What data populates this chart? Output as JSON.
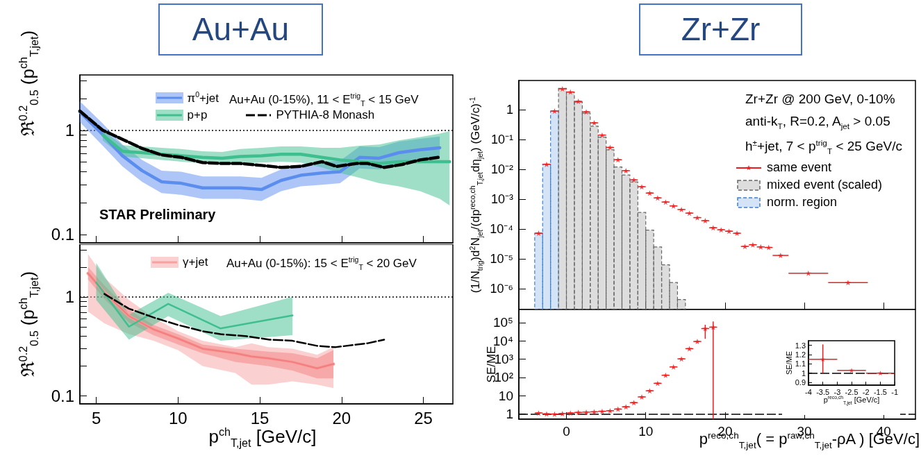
{
  "chart_data": [
    {
      "type": "line",
      "title": "Au+Au",
      "ylabel": "ℜ$^{0.2}$$_{0.5}$ (p$^{ch}$$_{T,jet}$)",
      "annotations": [
        "Au+Au (0-15%), 11 < E$^{trig}$$_{T}$ < 15 GeV",
        "STAR Preliminary"
      ],
      "legend": "top",
      "marker": "none",
      "log": true,
      "tick_labels": "y",
      "xlim": [
        4,
        26.8
      ],
      "ylim": [
        0.083,
        3.4
      ],
      "xticks": [
        5,
        10,
        15,
        20,
        25
      ],
      "yticks": [
        0.1,
        {
          "value": 0.2,
          "label": null
        },
        {
          "value": 0.3,
          "label": null
        },
        {
          "value": 0.4,
          "label": null
        },
        {
          "value": 0.5,
          "label": null
        },
        {
          "value": 0.6,
          "label": null
        },
        {
          "value": 0.7,
          "label": null
        },
        {
          "value": 0.8,
          "label": null
        },
        {
          "value": 0.9,
          "label": null
        },
        1,
        {
          "value": 2,
          "label": null
        },
        {
          "value": 3,
          "label": null
        }
      ],
      "ref_lines": [
        {
          "axis": "y",
          "value": 1,
          "line_style": "dotted",
          "color": "#000000"
        }
      ],
      "series": [
        {
          "name": "π$^{0}$+jet",
          "color": "#5b8def",
          "x": [
            4.0,
            5.4,
            6.6,
            7.8,
            9.0,
            10.2,
            11.5,
            12.7,
            13.8,
            15.1,
            16.3,
            17.5,
            18.8,
            19.9,
            21.1,
            22.3,
            23.5,
            24.8,
            26.0
          ],
          "values": [
            1.5,
            0.91,
            0.57,
            0.41,
            0.32,
            0.31,
            0.28,
            0.28,
            0.28,
            0.27,
            0.33,
            0.37,
            0.39,
            0.4,
            0.55,
            0.54,
            0.61,
            0.65,
            0.68
          ],
          "lower": [
            1.2,
            0.71,
            0.45,
            0.32,
            0.25,
            0.24,
            0.22,
            0.22,
            0.22,
            0.21,
            0.26,
            0.29,
            0.3,
            0.31,
            0.43,
            0.42,
            0.48,
            0.51,
            0.53
          ],
          "upper": [
            1.9,
            1.16,
            0.73,
            0.52,
            0.41,
            0.4,
            0.36,
            0.36,
            0.36,
            0.35,
            0.42,
            0.47,
            0.5,
            0.51,
            0.7,
            0.69,
            0.78,
            0.83,
            0.87
          ]
        },
        {
          "name": "p+p",
          "color": "#3fbf8f",
          "x": [
            5.4,
            6.6,
            7.8,
            9.0,
            10.2,
            11.5,
            12.7,
            13.8,
            15.1,
            16.3,
            17.5,
            18.8,
            19.9,
            21.1,
            22.3,
            23.5,
            24.8,
            26.0,
            26.6
          ],
          "values": [
            0.9,
            0.63,
            0.61,
            0.59,
            0.57,
            0.55,
            0.54,
            0.56,
            0.57,
            0.59,
            0.59,
            0.55,
            0.52,
            0.5,
            0.48,
            0.5,
            0.5,
            0.5,
            0.5
          ],
          "lower": [
            0.8,
            0.56,
            0.54,
            0.52,
            0.5,
            0.48,
            0.47,
            0.48,
            0.49,
            0.5,
            0.49,
            0.44,
            0.39,
            0.35,
            0.31,
            0.29,
            0.26,
            0.22,
            0.19
          ],
          "upper": [
            1.0,
            0.72,
            0.7,
            0.68,
            0.66,
            0.63,
            0.62,
            0.66,
            0.68,
            0.7,
            0.7,
            0.68,
            0.68,
            0.71,
            0.73,
            0.8,
            0.86,
            0.93,
            0.98
          ]
        },
        {
          "name": "PYTHIA-8 Monash",
          "color": "#000000",
          "line_style": "dashed",
          "x": [
            4.0,
            5.4,
            6.6,
            7.8,
            9.0,
            10.2,
            11.5,
            12.7,
            13.8,
            15.1,
            16.3,
            17.5,
            18.8,
            19.7,
            20.9,
            21.6,
            22.6,
            23.7,
            24.8,
            25.9
          ],
          "values": [
            1.53,
            1.0,
            0.82,
            0.67,
            0.58,
            0.55,
            0.49,
            0.48,
            0.48,
            0.46,
            0.44,
            0.45,
            0.5,
            0.45,
            0.48,
            0.48,
            0.44,
            0.47,
            0.52,
            0.55
          ]
        }
      ]
    },
    {
      "type": "line",
      "xlabel": "p$^{ch}$$_{T,jet}$ [GeV/c]",
      "ylabel": "ℜ$^{0.2}$$_{0.5}$ (p$^{ch}$$_{T,jet}$)",
      "annotations": [
        "Au+Au (0-15%): 15 < E$^{trig}$$_{T}$ < 20 GeV"
      ],
      "legend": "top left",
      "marker": "none",
      "log": true,
      "xlim": [
        4,
        26.8
      ],
      "ylim": [
        0.083,
        3.4
      ],
      "xticks": [
        5,
        10,
        15,
        20,
        25
      ],
      "yticks": [
        0.1,
        {
          "value": 0.2,
          "label": null
        },
        {
          "value": 0.3,
          "label": null
        },
        {
          "value": 0.4,
          "label": null
        },
        {
          "value": 0.5,
          "label": null
        },
        {
          "value": 0.6,
          "label": null
        },
        {
          "value": 0.7,
          "label": null
        },
        {
          "value": 0.8,
          "label": null
        },
        {
          "value": 0.9,
          "label": null
        },
        1,
        {
          "value": 2,
          "label": null
        },
        {
          "value": 3,
          "label": null
        }
      ],
      "ref_lines": [
        {
          "axis": "y",
          "value": 1,
          "line_style": "dotted",
          "color": "#000000"
        }
      ],
      "series": [
        {
          "name": "γ+jet",
          "color": "#f7a1a1",
          "x": [
            4.5,
            5.5,
            7.0,
            8.5,
            10.0,
            11.5,
            13.5,
            14.5,
            15.5,
            17.0,
            18.5,
            19.5
          ],
          "values": [
            1.73,
            1.11,
            0.64,
            0.47,
            0.38,
            0.3,
            0.27,
            0.25,
            0.24,
            0.22,
            0.19,
            0.21
          ],
          "lower": [
            0.71,
            0.54,
            0.42,
            0.36,
            0.29,
            0.2,
            0.17,
            0.13,
            0.13,
            0.14,
            0.13,
            0.12
          ],
          "upper": [
            2.7,
            1.56,
            0.93,
            0.62,
            0.45,
            0.36,
            0.31,
            0.34,
            0.31,
            0.3,
            0.26,
            0.31
          ]
        },
        {
          "color": "#f47f7f",
          "x": [
            4.5,
            5.5,
            7.0,
            8.5,
            10.0,
            11.5,
            13.5,
            14.5,
            15.5,
            17.0,
            18.5,
            19.5
          ],
          "values": [
            1.73,
            1.11,
            0.64,
            0.47,
            0.38,
            0.3,
            0.27,
            0.25,
            0.24,
            0.22,
            0.19,
            0.21
          ],
          "lower": [
            1.5,
            0.95,
            0.55,
            0.41,
            0.33,
            0.27,
            0.22,
            0.21,
            0.2,
            0.18,
            0.15,
            0.15
          ],
          "upper": [
            2.0,
            1.3,
            0.74,
            0.52,
            0.42,
            0.33,
            0.3,
            0.29,
            0.28,
            0.27,
            0.24,
            0.29
          ]
        },
        {
          "color": "#3fbf8f",
          "x": [
            5.0,
            7.0,
            9.4,
            12.6,
            17.0
          ],
          "values": [
            1.4,
            0.5,
            0.85,
            0.48,
            0.65
          ],
          "lower": [
            0.93,
            0.37,
            0.64,
            0.36,
            0.41
          ],
          "upper": [
            2.2,
            0.66,
            1.1,
            0.64,
            1.0
          ]
        },
        {
          "color": "#000000",
          "line_style": "dashed",
          "x": [
            5.5,
            7.0,
            8.5,
            10.0,
            11.5,
            12.6,
            14.2,
            15.6,
            17.0,
            18.5,
            19.6,
            21.6,
            22.6
          ],
          "values": [
            1.07,
            0.76,
            0.62,
            0.52,
            0.45,
            0.42,
            0.4,
            0.37,
            0.36,
            0.32,
            0.31,
            0.34,
            0.37
          ]
        }
      ]
    },
    {
      "type": "scatter",
      "title": "Zr+Zr",
      "ylabel": "(1/N$_{trig}$)d$^{2}$N$_{jet}$/(dp$^{reco,ch}$$_{T,jet}$dη$_{jet}$) (GeV/c)$^{-1}$",
      "annotations": [
        "Zr+Zr @ 200 GeV, 0-10%",
        "anti-k$_{T}$, R=0.2, A$_{jet}$ > 0.05",
        "h$^{±}$+jet, 7 < p$^{trig}$$_{T}$ < 25 GeV/c"
      ],
      "legend": "right",
      "marker": "star",
      "log": true,
      "tick_labels": "y",
      "xlim": [
        -6,
        44
      ],
      "ylim": [
        2e-07,
        9.5
      ],
      "xticks": [
        0,
        10,
        20,
        30,
        40
      ],
      "yticks": [
        {
          "value": 1e-06,
          "label": "10⁻⁶"
        },
        {
          "value": 1e-05,
          "label": "10⁻⁵"
        },
        {
          "value": 0.0001,
          "label": "10⁻⁴"
        },
        {
          "value": 0.001,
          "label": "10⁻³"
        },
        {
          "value": 0.01,
          "label": "10⁻²"
        },
        {
          "value": 0.1,
          "label": "10⁻¹"
        },
        1
      ],
      "series": [
        {
          "name": "norm. region",
          "type": "histogram",
          "color": "#3b7fd1",
          "bins": [
            -4,
            -3,
            -2,
            -1
          ],
          "values": [
            7.2e-05,
            0.0148,
            0.9
          ]
        },
        {
          "name": "mixed event (scaled)",
          "type": "histogram",
          "color": "#666666",
          "bins": [
            -1,
            0,
            1,
            2,
            3,
            4,
            5,
            6,
            7,
            8,
            9,
            10,
            11,
            12,
            13,
            14,
            15
          ],
          "values": [
            5.2,
            3.9,
            1.8,
            0.76,
            0.28,
            0.12,
            0.045,
            0.012,
            0.0065,
            0.0038,
            0.00036,
            9.2e-05,
            2.5e-05,
            6.3e-06,
            1.6e-06,
            4.3e-07
          ]
        },
        {
          "name": "same event",
          "color": "#ee1c1c",
          "x": [
            -3.5,
            -2.5,
            -1.5,
            -0.5,
            0.5,
            1.5,
            2.5,
            3.5,
            4.5,
            5.5,
            6.5,
            7.5,
            8.5,
            9.5,
            10.5,
            11.5,
            12.5,
            13.5,
            14.5,
            15.5,
            16.5,
            17.5,
            18.5,
            19.5,
            20.5,
            21.5,
            22.5,
            23.5,
            24.5,
            25.5,
            27,
            30.5,
            35.5
          ],
          "values": [
            7.2e-05,
            0.0147,
            0.9,
            5.0,
            3.9,
            1.9,
            0.84,
            0.36,
            0.14,
            0.054,
            0.021,
            0.009,
            0.0044,
            0.0026,
            0.0016,
            0.0011,
            0.0008,
            0.00059,
            0.00045,
            0.00034,
            0.00024,
            0.00019,
            0.00011,
            9.4e-05,
            8.4e-05,
            7.2e-05,
            2.6e-05,
            2.95e-05,
            2.5e-05,
            2.4e-05,
            1.3e-05,
            3.3e-06,
            1.6e-06
          ],
          "xerrors": [
            0.5,
            0.5,
            0.5,
            0.5,
            0.5,
            0.5,
            0.5,
            0.5,
            0.5,
            0.5,
            0.5,
            0.5,
            0.5,
            0.5,
            0.5,
            0.5,
            0.5,
            0.5,
            0.5,
            0.5,
            0.5,
            0.5,
            0.5,
            0.5,
            0.5,
            0.5,
            0.5,
            0.5,
            0.5,
            0.5,
            1,
            [
              28,
              33
            ],
            [
              33,
              38
            ]
          ]
        }
      ]
    },
    {
      "type": "scatter",
      "xlabel": "p$^{reco,ch}$$_{T,jet}$( = p$^{raw,ch}$$_{T,jet}$-ρA ) [GeV/c]",
      "ylabel": "SE/ME",
      "marker": "star",
      "log": true,
      "xlim": [
        -6,
        44
      ],
      "ylim": [
        0.53,
        520000.0
      ],
      "xticks": [
        0,
        10,
        20,
        30,
        40
      ],
      "yticks": [
        1,
        10,
        {
          "value": 100,
          "label": "10²"
        },
        {
          "value": 1000,
          "label": "10³"
        },
        {
          "value": 10000,
          "label": "10⁴"
        },
        {
          "value": 100000,
          "label": "10⁵"
        }
      ],
      "ref_lines": [
        {
          "axis": "y",
          "value": 1,
          "line_style": "dashed",
          "color": "#000000"
        }
      ],
      "series": [
        {
          "color": "#ee1c1c",
          "x": [
            -3.5,
            -2.5,
            -1.5,
            -0.5,
            0.5,
            1.5,
            2.5,
            3.5,
            4.5,
            5.5,
            6.5,
            7.5,
            8.5,
            9.5,
            10.5,
            11.5,
            12.5,
            13.5,
            14.5,
            15.5,
            16.5,
            17.5,
            18.5
          ],
          "values": [
            1.15,
            1.03,
            1.0,
            1.07,
            1.15,
            1.23,
            1.28,
            1.32,
            1.42,
            1.52,
            1.87,
            2.5,
            4.2,
            8.7,
            18.7,
            48,
            132,
            376,
            1040,
            3760,
            9300,
            47000,
            56000
          ],
          "xerrors": [
            0.5,
            0.5,
            0.5,
            0.5,
            0.5,
            0.5,
            0.5,
            0.5,
            0.5,
            0.5,
            0.5,
            0.5,
            0.5,
            0.5,
            0.5,
            0.5,
            0.5,
            0.5,
            0.5,
            0.5,
            0.5,
            0.5,
            0.5
          ],
          "errors": [
            null,
            null,
            null,
            null,
            null,
            null,
            null,
            null,
            null,
            null,
            null,
            null,
            null,
            null,
            null,
            null,
            null,
            null,
            null,
            null,
            null,
            [
              13000,
              76000
            ],
            [
              0.53,
              115000
            ]
          ]
        }
      ]
    },
    {
      "type": "scatter",
      "xlabel": "p$^{reco,ch}$$_{T,jet}$ [GeV/c]",
      "ylabel": "SE/ME",
      "marker": "star",
      "xlim": [
        -4,
        -1
      ],
      "ylim": [
        0.87,
        1.35
      ],
      "xticks": [
        -4,
        -3.5,
        -3,
        -2.5,
        -2,
        -1.5,
        -1
      ],
      "yticks": [
        0.9,
        1,
        1.1,
        1.2,
        1.3
      ],
      "ref_lines": [
        {
          "axis": "y",
          "value": 1,
          "line_style": "dashed",
          "color": "#000000"
        }
      ],
      "series": [
        {
          "color": "#ee1c1c",
          "x": [
            -3.5,
            -2.5,
            -1.5
          ],
          "values": [
            1.15,
            1.03,
            1.0
          ],
          "xerrors": [
            0.5,
            0.5,
            0.5
          ],
          "errors": [
            [
              1.0,
              1.31
            ],
            null,
            null
          ]
        }
      ]
    }
  ]
}
